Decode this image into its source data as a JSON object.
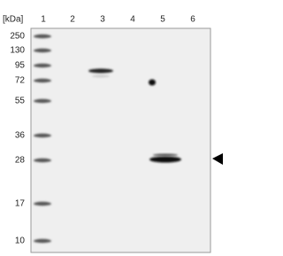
{
  "header": {
    "unit": "[kDa]",
    "lanes": [
      "1",
      "2",
      "3",
      "4",
      "5",
      "6"
    ]
  },
  "markers": [
    "250",
    "130",
    "95",
    "72",
    "55",
    "36",
    "28",
    "17",
    "10"
  ]
}
